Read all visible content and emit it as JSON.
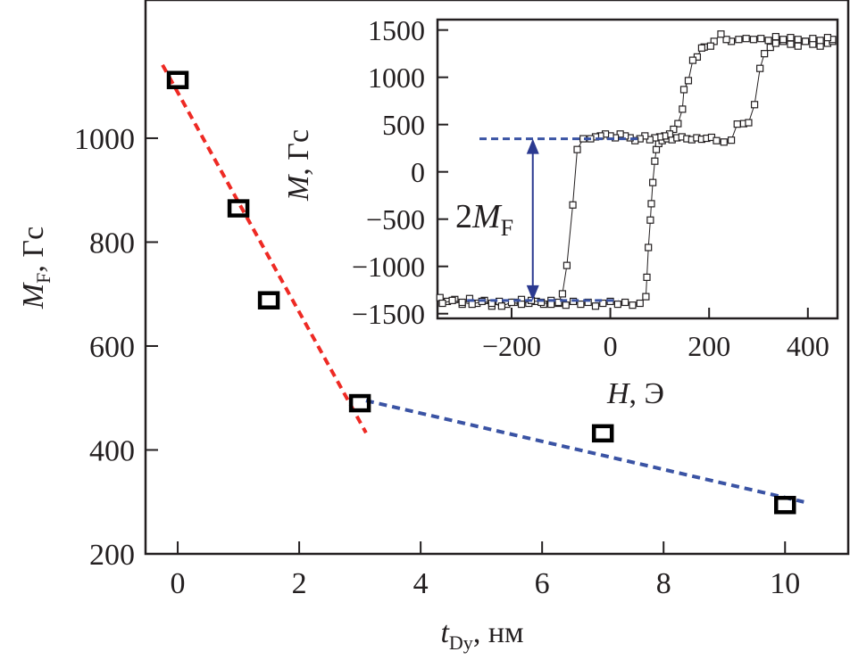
{
  "chart_data": [
    {
      "type": "scatter",
      "xlabel": "t",
      "xlabel_sub": "Dy",
      "xlabel_unit": ", нм",
      "ylabel": "M",
      "ylabel_sub": "F",
      "ylabel_unit": ", Гс",
      "xlim": [
        -0.53,
        11.04
      ],
      "ylim": [
        200,
        1266
      ],
      "xticks": [
        0,
        2,
        4,
        6,
        8,
        10
      ],
      "yticks": [
        200,
        400,
        600,
        800,
        1000
      ],
      "grid": false,
      "points": [
        [
          0,
          1112
        ],
        [
          1,
          865
        ],
        [
          1.5,
          688
        ],
        [
          3,
          490
        ],
        [
          7,
          432
        ],
        [
          10,
          294
        ]
      ],
      "marker_color": "#000000",
      "fit_lines": [
        {
          "color": "#ee2a24",
          "style": "dashed",
          "points": [
            [
              -0.25,
              1141
            ],
            [
              3.1,
              433
            ]
          ]
        },
        {
          "color": "#3a53a4",
          "style": "dashed",
          "points": [
            [
              3.1,
              495
            ],
            [
              10.31,
              300
            ]
          ]
        }
      ]
    },
    {
      "type": "line",
      "placement": "inset top-right",
      "xlabel": "H",
      "xlabel_unit": ", Э",
      "ylabel": "M",
      "ylabel_unit": ", Гс",
      "xlim": [
        -350,
        460
      ],
      "ylim": [
        -1550,
        1610
      ],
      "xticks": [
        -200,
        0,
        200,
        400
      ],
      "xtick_labels": [
        "−200",
        "0",
        "200",
        "400"
      ],
      "yticks": [
        1500,
        1000,
        500,
        0,
        -500,
        -1000,
        -1500
      ],
      "ytick_labels": [
        "1500",
        "1000",
        "500",
        "0",
        "−500",
        "−1000",
        "−1500"
      ],
      "grid": false,
      "series": [
        {
          "points": [
            [
              -345,
              -1330
            ],
            [
              -330,
              -1370
            ],
            [
              -315,
              -1350
            ],
            [
              -300,
              -1400
            ],
            [
              -285,
              -1340
            ],
            [
              -270,
              -1390
            ],
            [
              -255,
              -1360
            ],
            [
              -240,
              -1420
            ],
            [
              -225,
              -1370
            ],
            [
              -210,
              -1400
            ],
            [
              -195,
              -1380
            ],
            [
              -180,
              -1350
            ],
            [
              -165,
              -1390
            ],
            [
              -150,
              -1370
            ],
            [
              -135,
              -1400
            ],
            [
              -120,
              -1360
            ],
            [
              -105,
              -1390
            ],
            [
              -90,
              -1410
            ],
            [
              -75,
              -1370
            ],
            [
              -60,
              -1400
            ],
            [
              -45,
              -1380
            ],
            [
              -30,
              -1420
            ],
            [
              -15,
              -1390
            ],
            [
              0,
              -1370
            ],
            [
              15,
              -1400
            ],
            [
              30,
              -1380
            ],
            [
              45,
              -1410
            ],
            [
              60,
              -1390
            ],
            [
              72,
              -1320
            ],
            [
              74,
              -1115
            ],
            [
              77,
              -800
            ],
            [
              81,
              -510
            ],
            [
              83,
              -337
            ],
            [
              86,
              -113
            ],
            [
              90,
              113
            ],
            [
              93,
              236
            ],
            [
              98,
              300
            ],
            [
              105,
              330
            ],
            [
              115,
              350
            ],
            [
              125,
              340
            ],
            [
              135,
              360
            ],
            [
              145,
              370
            ],
            [
              155,
              350
            ],
            [
              165,
              340
            ],
            [
              175,
              360
            ],
            [
              185,
              345
            ],
            [
              195,
              355
            ],
            [
              205,
              365
            ],
            [
              215,
              330
            ],
            [
              230,
              315
            ],
            [
              245,
              335
            ],
            [
              257,
              505
            ],
            [
              270,
              510
            ],
            [
              280,
              520
            ],
            [
              292,
              711
            ],
            [
              303,
              1094
            ],
            [
              312,
              1250
            ],
            [
              324,
              1317
            ],
            [
              335,
              1360
            ],
            [
              350,
              1380
            ],
            [
              365,
              1350
            ],
            [
              380,
              1330
            ],
            [
              395,
              1380
            ],
            [
              410,
              1350
            ],
            [
              425,
              1330
            ],
            [
              440,
              1360
            ],
            [
              450,
              1380
            ]
          ]
        },
        {
          "points": [
            [
              450,
              1400
            ],
            [
              440,
              1420
            ],
            [
              425,
              1390
            ],
            [
              410,
              1410
            ],
            [
              395,
              1380
            ],
            [
              380,
              1400
            ],
            [
              365,
              1420
            ],
            [
              350,
              1400
            ],
            [
              335,
              1430
            ],
            [
              320,
              1390
            ],
            [
              305,
              1410
            ],
            [
              290,
              1400
            ],
            [
              275,
              1410
            ],
            [
              260,
              1400
            ],
            [
              245,
              1380
            ],
            [
              235,
              1400
            ],
            [
              224,
              1457
            ],
            [
              210,
              1380
            ],
            [
              203,
              1330
            ],
            [
              190,
              1320
            ],
            [
              185,
              1310
            ],
            [
              176,
              1215
            ],
            [
              167,
              1180
            ],
            [
              158,
              965
            ],
            [
              149,
              870
            ],
            [
              146,
              663
            ],
            [
              137,
              510
            ],
            [
              128,
              450
            ],
            [
              120,
              400
            ],
            [
              110,
              380
            ],
            [
              100,
              370
            ],
            [
              90,
              360
            ],
            [
              80,
              340
            ],
            [
              70,
              380
            ],
            [
              60,
              350
            ],
            [
              50,
              330
            ],
            [
              40,
              360
            ],
            [
              30,
              380
            ],
            [
              20,
              400
            ],
            [
              10,
              360
            ],
            [
              0,
              380
            ],
            [
              -10,
              400
            ],
            [
              -20,
              380
            ],
            [
              -30,
              370
            ],
            [
              -40,
              350
            ],
            [
              -55,
              350
            ],
            [
              -67,
              236
            ],
            [
              -76,
              -350
            ],
            [
              -88,
              -990
            ],
            [
              -97,
              -1290
            ],
            [
              -105,
              -1380
            ],
            [
              -120,
              -1400
            ],
            [
              -140,
              -1380
            ],
            [
              -160,
              -1360
            ],
            [
              -180,
              -1400
            ],
            [
              -200,
              -1380
            ],
            [
              -220,
              -1420
            ],
            [
              -240,
              -1390
            ],
            [
              -260,
              -1370
            ],
            [
              -280,
              -1400
            ],
            [
              -300,
              -1380
            ],
            [
              -320,
              -1360
            ],
            [
              -340,
              -1390
            ]
          ]
        }
      ],
      "guide_lines": [
        {
          "color": "#3a53a4",
          "style": "dashed",
          "points": [
            [
              -265,
              350
            ],
            [
              60,
              350
            ]
          ]
        },
        {
          "color": "#3a53a4",
          "style": "dashed",
          "points": [
            [
              -290,
              -1360
            ],
            [
              16,
              -1360
            ]
          ]
        }
      ],
      "annotation": {
        "text": "2M",
        "sub": "F",
        "color": "#2b3990",
        "arrow_x": -157,
        "arrow_from": 350,
        "arrow_to": -1360
      }
    }
  ]
}
